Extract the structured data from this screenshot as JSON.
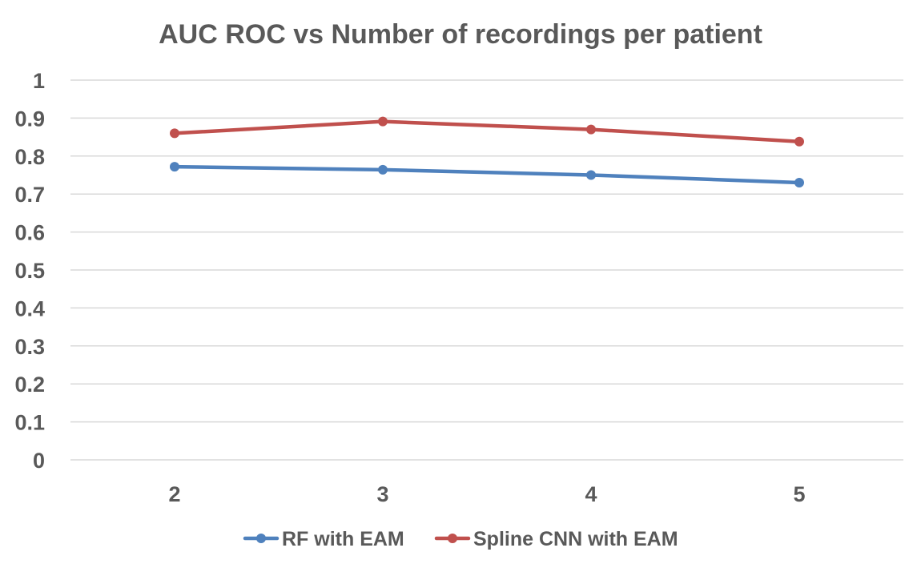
{
  "chart_data": {
    "type": "line",
    "title": "AUC ROC vs Number of recordings per patient",
    "xlabel": "",
    "ylabel": "",
    "categories": [
      "2",
      "3",
      "4",
      "5"
    ],
    "yticks": [
      "0",
      "0.1",
      "0.2",
      "0.3",
      "0.4",
      "0.5",
      "0.6",
      "0.7",
      "0.8",
      "0.9",
      "1"
    ],
    "ylim": [
      0,
      1
    ],
    "grid": true,
    "legend_position": "bottom",
    "series": [
      {
        "name": "RF with EAM",
        "color": "#4f81bd",
        "values": [
          0.772,
          0.764,
          0.75,
          0.73
        ]
      },
      {
        "name": "Spline CNN with EAM",
        "color": "#c0504d",
        "values": [
          0.86,
          0.891,
          0.87,
          0.838
        ]
      }
    ]
  }
}
